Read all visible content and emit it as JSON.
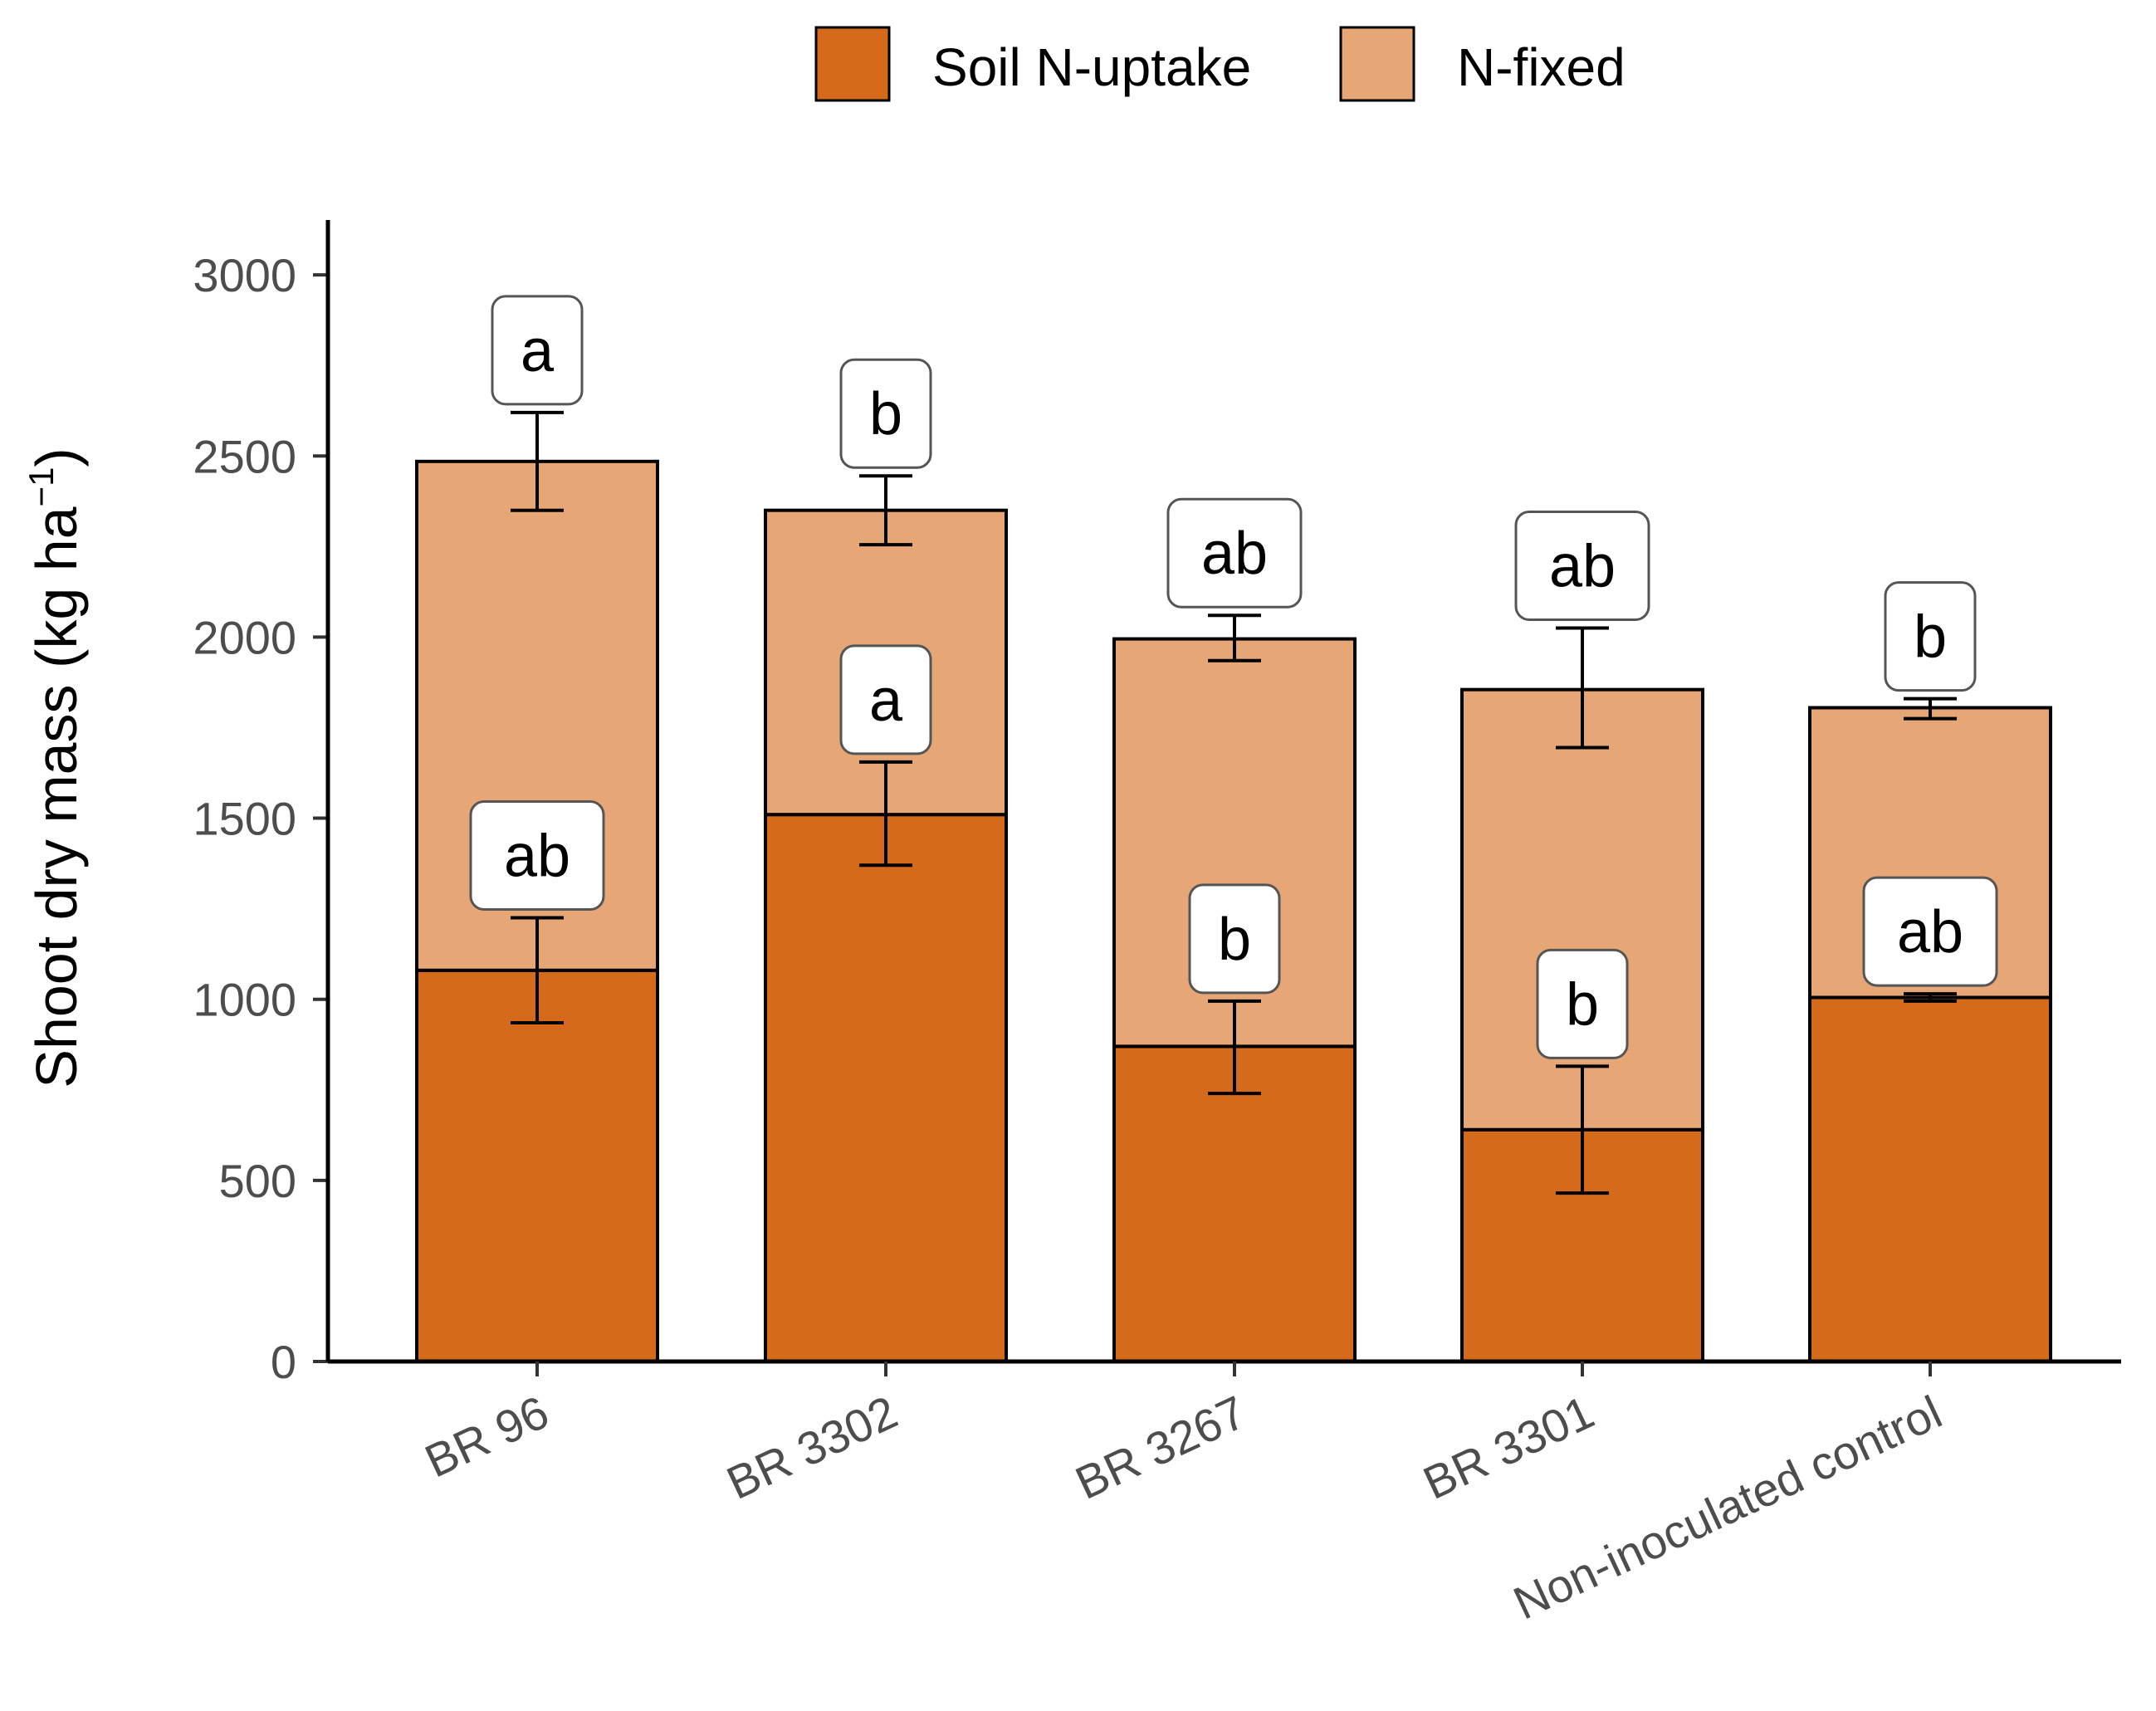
{
  "chart_data": {
    "type": "bar",
    "stacked": true,
    "categories": [
      "BR 96",
      "BR 3302",
      "BR 3267",
      "BR 3301",
      "Non-inoculated control"
    ],
    "series": [
      {
        "name": "Soil N-uptake",
        "color": "#d56b1a",
        "values": [
          1080,
          1510,
          870,
          640,
          1005
        ],
        "error_low": [
          935,
          1370,
          740,
          465,
          995
        ],
        "error_high": [
          1225,
          1655,
          995,
          815,
          1015
        ],
        "letters": [
          "ab",
          "a",
          "b",
          "b",
          "ab"
        ]
      },
      {
        "name": "N-fixed",
        "color": "#e6a675",
        "values": [
          1405,
          840,
          1125,
          1215,
          800
        ],
        "error_low": [
          2350,
          2255,
          1935,
          1695,
          1775
        ],
        "error_high": [
          2620,
          2445,
          2060,
          2025,
          1830
        ],
        "letters": [
          "a",
          "b",
          "ab",
          "ab",
          "b"
        ]
      }
    ],
    "ylabel": "Shoot dry mass (kg ha",
    "ylabel_unit_exp": "−1",
    "ylabel_close": ")",
    "xlabel": "",
    "ylim": [
      0,
      3150
    ],
    "yticks": [
      "0",
      "500",
      "1000",
      "1500",
      "2000",
      "2500",
      "3000"
    ],
    "legend_position": "top",
    "grid": false
  }
}
